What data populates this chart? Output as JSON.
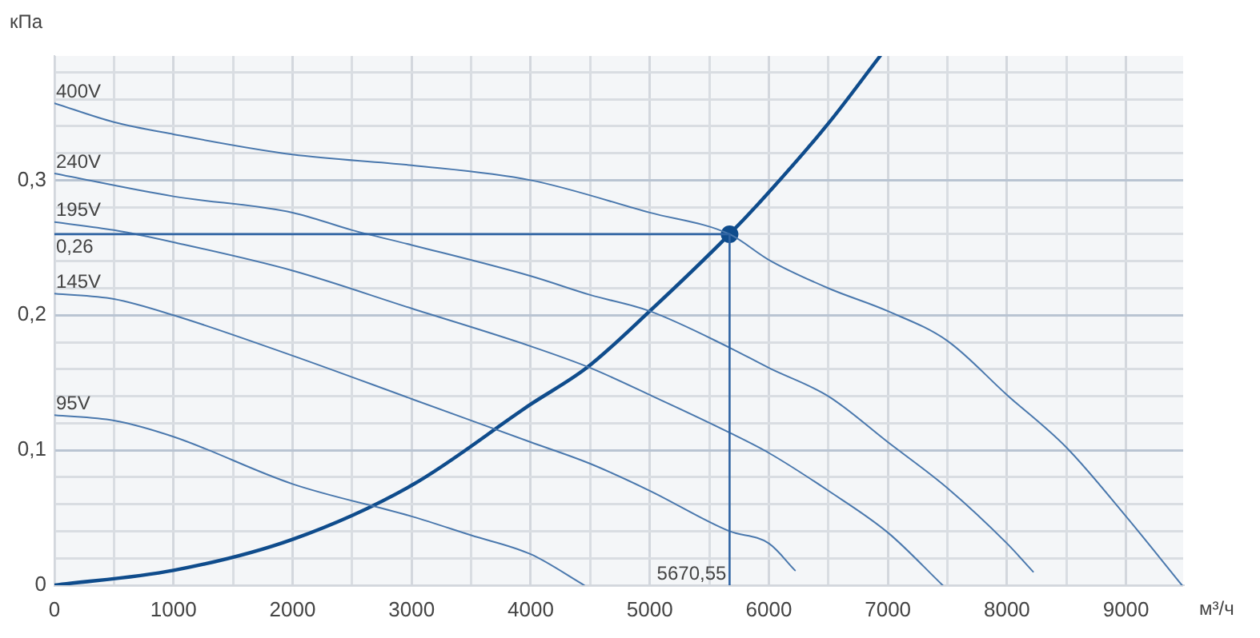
{
  "chart_data": {
    "type": "line",
    "xlabel": "м³/ч",
    "ylabel": "кПа",
    "xlim": [
      0,
      9480
    ],
    "ylim": [
      0,
      0.392
    ],
    "xticks": [
      0,
      {
        "value": 500,
        "label": null
      },
      1000,
      {
        "value": 1500,
        "label": null
      },
      2000,
      {
        "value": 2500,
        "label": null
      },
      3000,
      {
        "value": 3500,
        "label": null
      },
      4000,
      {
        "value": 4500,
        "label": null
      },
      5000,
      {
        "value": 5500,
        "label": null
      },
      6000,
      {
        "value": 6500,
        "label": null
      },
      7000,
      {
        "value": 7500,
        "label": null
      },
      8000,
      {
        "value": 8500,
        "label": null
      },
      9000
    ],
    "yticks": [
      0,
      {
        "value": 0.02,
        "label": null
      },
      {
        "value": 0.04,
        "label": null
      },
      {
        "value": 0.06,
        "label": null
      },
      {
        "value": 0.08,
        "label": null
      },
      {
        "value": 0.1,
        "label": "0,1"
      },
      {
        "value": 0.12,
        "label": null
      },
      {
        "value": 0.14,
        "label": null
      },
      {
        "value": 0.16,
        "label": null
      },
      {
        "value": 0.18,
        "label": null
      },
      {
        "value": 0.2,
        "label": "0,2"
      },
      {
        "value": 0.22,
        "label": null
      },
      {
        "value": 0.24,
        "label": null
      },
      {
        "value": 0.26,
        "label": null
      },
      {
        "value": 0.28,
        "label": null
      },
      {
        "value": 0.3,
        "label": "0,3"
      },
      {
        "value": 0.32,
        "label": null
      },
      {
        "value": 0.34,
        "label": null
      },
      {
        "value": 0.36,
        "label": null
      },
      {
        "value": 0.38,
        "label": null
      }
    ],
    "grid": true,
    "legend": false,
    "marker": "none",
    "line_style": "solid",
    "series": [
      {
        "name": "400V",
        "color": "#4a78ad",
        "x": [
          0,
          500,
          1000,
          2000,
          3000,
          4000,
          5000,
          5670,
          6000,
          6500,
          7000,
          7500,
          8000,
          8500,
          9000,
          9470
        ],
        "values": [
          0.357,
          0.343,
          0.334,
          0.319,
          0.311,
          0.3,
          0.276,
          0.26,
          0.241,
          0.22,
          0.203,
          0.181,
          0.141,
          0.102,
          0.051,
          0
        ]
      },
      {
        "name": "240V",
        "color": "#4a78ad",
        "x": [
          0,
          1000,
          2000,
          2500,
          3000,
          4000,
          4500,
          5000,
          5670,
          6000,
          6500,
          7000,
          7500,
          8000,
          8220
        ],
        "values": [
          0.305,
          0.288,
          0.276,
          0.263,
          0.252,
          0.229,
          0.215,
          0.203,
          0.176,
          0.161,
          0.14,
          0.106,
          0.072,
          0.031,
          0.01
        ]
      },
      {
        "name": "195V",
        "color": "#4a78ad",
        "x": [
          0,
          500,
          1000,
          2000,
          3000,
          4000,
          4500,
          5000,
          5670,
          6000,
          6500,
          7000,
          7460
        ],
        "values": [
          0.269,
          0.263,
          0.254,
          0.233,
          0.205,
          0.177,
          0.161,
          0.141,
          0.113,
          0.098,
          0.07,
          0.039,
          0
        ]
      },
      {
        "name": "145V",
        "color": "#4a78ad",
        "x": [
          0,
          500,
          1000,
          2000,
          3000,
          4000,
          4500,
          5000,
          5670,
          6000,
          6220
        ],
        "values": [
          0.216,
          0.212,
          0.2,
          0.17,
          0.138,
          0.106,
          0.09,
          0.07,
          0.04,
          0.031,
          0.011
        ]
      },
      {
        "name": "95V",
        "color": "#4a78ad",
        "x": [
          0,
          500,
          1000,
          2000,
          3000,
          3500,
          4000,
          4450
        ],
        "values": [
          0.126,
          0.122,
          0.11,
          0.075,
          0.051,
          0.037,
          0.023,
          0
        ]
      },
      {
        "type": "line",
        "color": "#0f4c8c",
        "x": [
          0,
          1000,
          2000,
          3000,
          4000,
          4470,
          5000,
          5670,
          6000,
          6500,
          6935
        ],
        "values": [
          0,
          0.011,
          0.034,
          0.074,
          0.134,
          0.161,
          0.203,
          0.26,
          0.291,
          0.342,
          0.392
        ]
      },
      {
        "type": "scatter",
        "marker": "circle",
        "color": "#0f4c8c",
        "x": [
          5670.55
        ],
        "values": [
          0.26
        ]
      }
    ],
    "ref_lines": [
      {
        "axis": "y",
        "value": 0.26,
        "label": "0,26",
        "color": "#2f64a3"
      },
      {
        "axis": "x",
        "value": 5670.55,
        "label": "5670,55",
        "color": "#2f64a3"
      }
    ]
  }
}
